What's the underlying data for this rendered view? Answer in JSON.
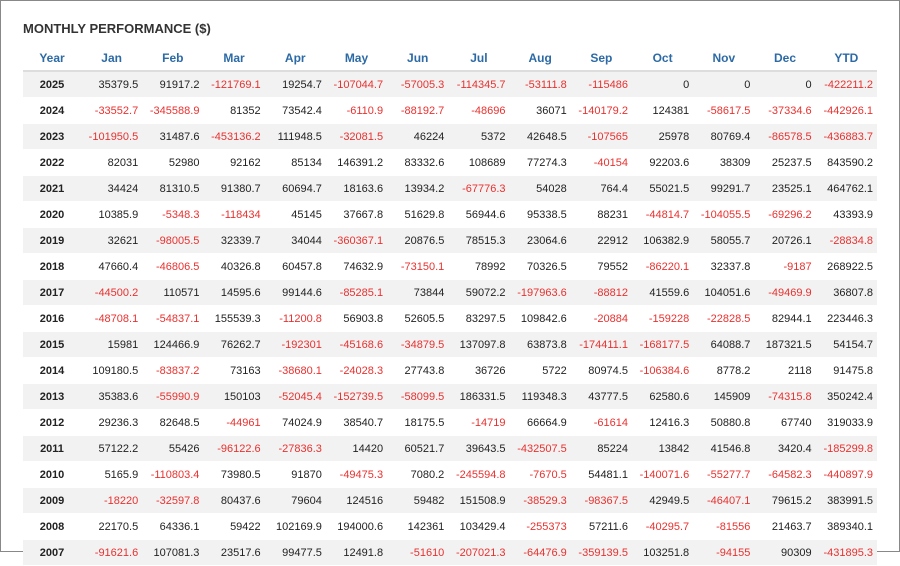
{
  "header": {
    "title": "MONTHLY PERFORMANCE ($)"
  },
  "table": {
    "columns": [
      "Year",
      "Jan",
      "Feb",
      "Mar",
      "Apr",
      "May",
      "Jun",
      "Jul",
      "Aug",
      "Sep",
      "Oct",
      "Nov",
      "Dec",
      "YTD"
    ],
    "rows": [
      [
        "2025",
        "35379.5",
        "91917.2",
        "-121769.1",
        "19254.7",
        "-107044.7",
        "-57005.3",
        "-114345.7",
        "-53111.8",
        "-115486",
        "0",
        "0",
        "0",
        "-422211.2"
      ],
      [
        "2024",
        "-33552.7",
        "-345588.9",
        "81352",
        "73542.4",
        "-6110.9",
        "-88192.7",
        "-48696",
        "36071",
        "-140179.2",
        "124381",
        "-58617.5",
        "-37334.6",
        "-442926.1"
      ],
      [
        "2023",
        "-101950.5",
        "31487.6",
        "-453136.2",
        "111948.5",
        "-32081.5",
        "46224",
        "5372",
        "42648.5",
        "-107565",
        "25978",
        "80769.4",
        "-86578.5",
        "-436883.7"
      ],
      [
        "2022",
        "82031",
        "52980",
        "92162",
        "85134",
        "146391.2",
        "83332.6",
        "108689",
        "77274.3",
        "-40154",
        "92203.6",
        "38309",
        "25237.5",
        "843590.2"
      ],
      [
        "2021",
        "34424",
        "81310.5",
        "91380.7",
        "60694.7",
        "18163.6",
        "13934.2",
        "-67776.3",
        "54028",
        "764.4",
        "55021.5",
        "99291.7",
        "23525.1",
        "464762.1"
      ],
      [
        "2020",
        "10385.9",
        "-5348.3",
        "-118434",
        "45145",
        "37667.8",
        "51629.8",
        "56944.6",
        "95338.5",
        "88231",
        "-44814.7",
        "-104055.5",
        "-69296.2",
        "43393.9"
      ],
      [
        "2019",
        "32621",
        "-98005.5",
        "32339.7",
        "34044",
        "-360367.1",
        "20876.5",
        "78515.3",
        "23064.6",
        "22912",
        "106382.9",
        "58055.7",
        "20726.1",
        "-28834.8"
      ],
      [
        "2018",
        "47660.4",
        "-46806.5",
        "40326.8",
        "60457.8",
        "74632.9",
        "-73150.1",
        "78992",
        "70326.5",
        "79552",
        "-86220.1",
        "32337.8",
        "-9187",
        "268922.5"
      ],
      [
        "2017",
        "-44500.2",
        "110571",
        "14595.6",
        "99144.6",
        "-85285.1",
        "73844",
        "59072.2",
        "-197963.6",
        "-88812",
        "41559.6",
        "104051.6",
        "-49469.9",
        "36807.8"
      ],
      [
        "2016",
        "-48708.1",
        "-54837.1",
        "155539.3",
        "-11200.8",
        "56903.8",
        "52605.5",
        "83297.5",
        "109842.6",
        "-20884",
        "-159228",
        "-22828.5",
        "82944.1",
        "223446.3"
      ],
      [
        "2015",
        "15981",
        "124466.9",
        "76262.7",
        "-192301",
        "-45168.6",
        "-34879.5",
        "137097.8",
        "63873.8",
        "-174411.1",
        "-168177.5",
        "64088.7",
        "187321.5",
        "54154.7"
      ],
      [
        "2014",
        "109180.5",
        "-83837.2",
        "73163",
        "-38680.1",
        "-24028.3",
        "27743.8",
        "36726",
        "5722",
        "80974.5",
        "-106384.6",
        "8778.2",
        "2118",
        "91475.8"
      ],
      [
        "2013",
        "35383.6",
        "-55990.9",
        "150103",
        "-52045.4",
        "-152739.5",
        "-58099.5",
        "186331.5",
        "119348.3",
        "43777.5",
        "62580.6",
        "145909",
        "-74315.8",
        "350242.4"
      ],
      [
        "2012",
        "29236.3",
        "82648.5",
        "-44961",
        "74024.9",
        "38540.7",
        "18175.5",
        "-14719",
        "66664.9",
        "-61614",
        "12416.3",
        "50880.8",
        "67740",
        "319033.9"
      ],
      [
        "2011",
        "57122.2",
        "55426",
        "-96122.6",
        "-27836.3",
        "14420",
        "60521.7",
        "39643.5",
        "-432507.5",
        "85224",
        "13842",
        "41546.8",
        "3420.4",
        "-185299.8"
      ],
      [
        "2010",
        "5165.9",
        "-110803.4",
        "73980.5",
        "91870",
        "-49475.3",
        "7080.2",
        "-245594.8",
        "-7670.5",
        "54481.1",
        "-140071.6",
        "-55277.7",
        "-64582.3",
        "-440897.9"
      ],
      [
        "2009",
        "-18220",
        "-32597.8",
        "80437.6",
        "79604",
        "124516",
        "59482",
        "151508.9",
        "-38529.3",
        "-98367.5",
        "42949.5",
        "-46407.1",
        "79615.2",
        "383991.5"
      ],
      [
        "2008",
        "22170.5",
        "64336.1",
        "59422",
        "102169.9",
        "194000.6",
        "142361",
        "103429.4",
        "-255373",
        "57211.6",
        "-40295.7",
        "-81556",
        "21463.7",
        "389340.1"
      ],
      [
        "2007",
        "-91621.6",
        "107081.3",
        "23517.6",
        "99477.5",
        "12491.8",
        "-51610",
        "-207021.3",
        "-64476.9",
        "-359139.5",
        "103251.8",
        "-94155",
        "90309",
        "-431895.3"
      ]
    ]
  }
}
